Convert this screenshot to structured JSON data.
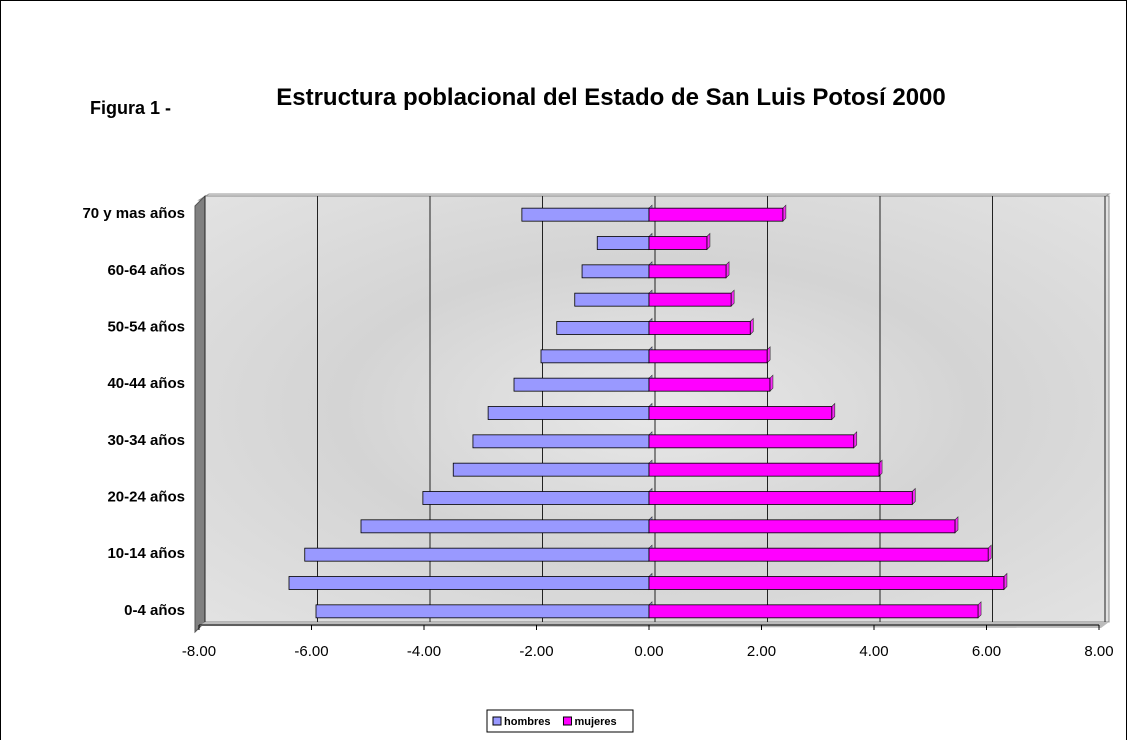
{
  "chart_data": {
    "type": "bar",
    "orientation": "horizontal",
    "figure_label": "Figura 1 -",
    "title": "Estructura poblacional del Estado de San Luis Potosí 2000",
    "categories": [
      "0-4 años",
      null,
      "10-14 años",
      null,
      "20-24 años",
      null,
      "30-34 años",
      null,
      "40-44 años",
      null,
      "50-54 años",
      null,
      "60-64 años",
      null,
      "70 y mas años"
    ],
    "series": [
      {
        "name": "hombres",
        "color": "#9999ff",
        "values": [
          -5.92,
          -6.4,
          -6.12,
          -5.12,
          -4.02,
          -3.48,
          -3.13,
          -2.86,
          -2.4,
          -1.92,
          -1.64,
          -1.32,
          -1.19,
          -0.92,
          -2.26
        ]
      },
      {
        "name": "mujeres",
        "color": "#ff00ff",
        "values": [
          5.85,
          6.31,
          6.03,
          5.44,
          4.68,
          4.09,
          3.64,
          3.25,
          2.15,
          2.1,
          1.8,
          1.46,
          1.37,
          1.03,
          2.38
        ]
      }
    ],
    "xlim": [
      -8,
      8
    ],
    "xticks": [
      {
        "value": -8,
        "label": "-8.00"
      },
      {
        "value": -6,
        "label": "-6.00"
      },
      {
        "value": -4,
        "label": "-4.00"
      },
      {
        "value": -2,
        "label": "-2.00"
      },
      {
        "value": 0,
        "label": "0.00"
      },
      {
        "value": 2,
        "label": "2.00"
      },
      {
        "value": 4,
        "label": "4.00"
      },
      {
        "value": 6,
        "label": "6.00"
      },
      {
        "value": 8,
        "label": "8.00"
      }
    ],
    "grid": true,
    "legend": "bottom"
  }
}
